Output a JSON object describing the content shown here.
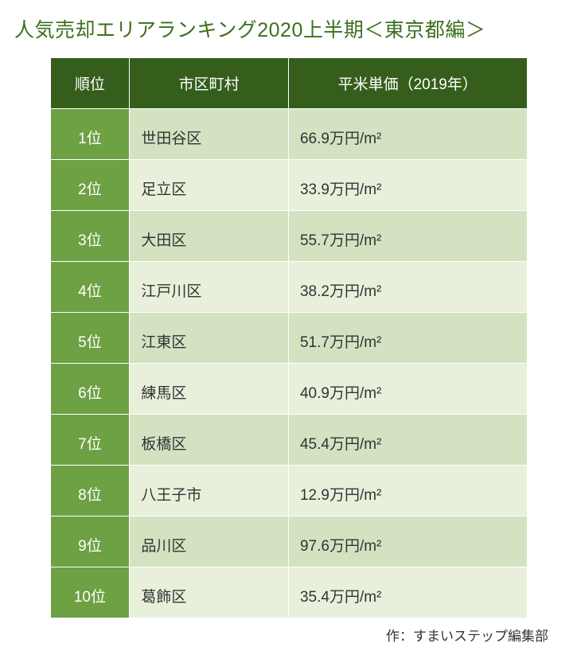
{
  "title": "人気売却エリアランキング2020上半期＜東京都編＞",
  "title_color": "#3d6f1f",
  "columns": [
    {
      "label": "順位",
      "key": "rank"
    },
    {
      "label": "市区町村",
      "key": "ward"
    },
    {
      "label": "平米単価（2019年）",
      "key": "price"
    }
  ],
  "rows": [
    {
      "rank": "1位",
      "ward": "世田谷区",
      "price": "66.9万円/m²"
    },
    {
      "rank": "2位",
      "ward": "足立区",
      "price": "33.9万円/m²"
    },
    {
      "rank": "3位",
      "ward": "大田区",
      "price": "55.7万円/m²"
    },
    {
      "rank": "4位",
      "ward": "江戸川区",
      "price": "38.2万円/m²"
    },
    {
      "rank": "5位",
      "ward": "江東区",
      "price": "51.7万円/m²"
    },
    {
      "rank": "6位",
      "ward": "練馬区",
      "price": "40.9万円/m²"
    },
    {
      "rank": "7位",
      "ward": "板橋区",
      "price": "45.4万円/m²"
    },
    {
      "rank": "8位",
      "ward": "八王子市",
      "price": "12.9万円/m²"
    },
    {
      "rank": "9位",
      "ward": "品川区",
      "price": "97.6万円/m²"
    },
    {
      "rank": "10位",
      "ward": "葛飾区",
      "price": "35.4万円/m²"
    }
  ],
  "colors": {
    "header_bg": "#355e1c",
    "rank_bg": "#6ea044",
    "row_odd_bg": "#d3e3c1",
    "row_even_bg": "#e8f0db",
    "body_text": "#333333",
    "credit_text": "#333333"
  },
  "credit": "作：すまいステップ編集部"
}
